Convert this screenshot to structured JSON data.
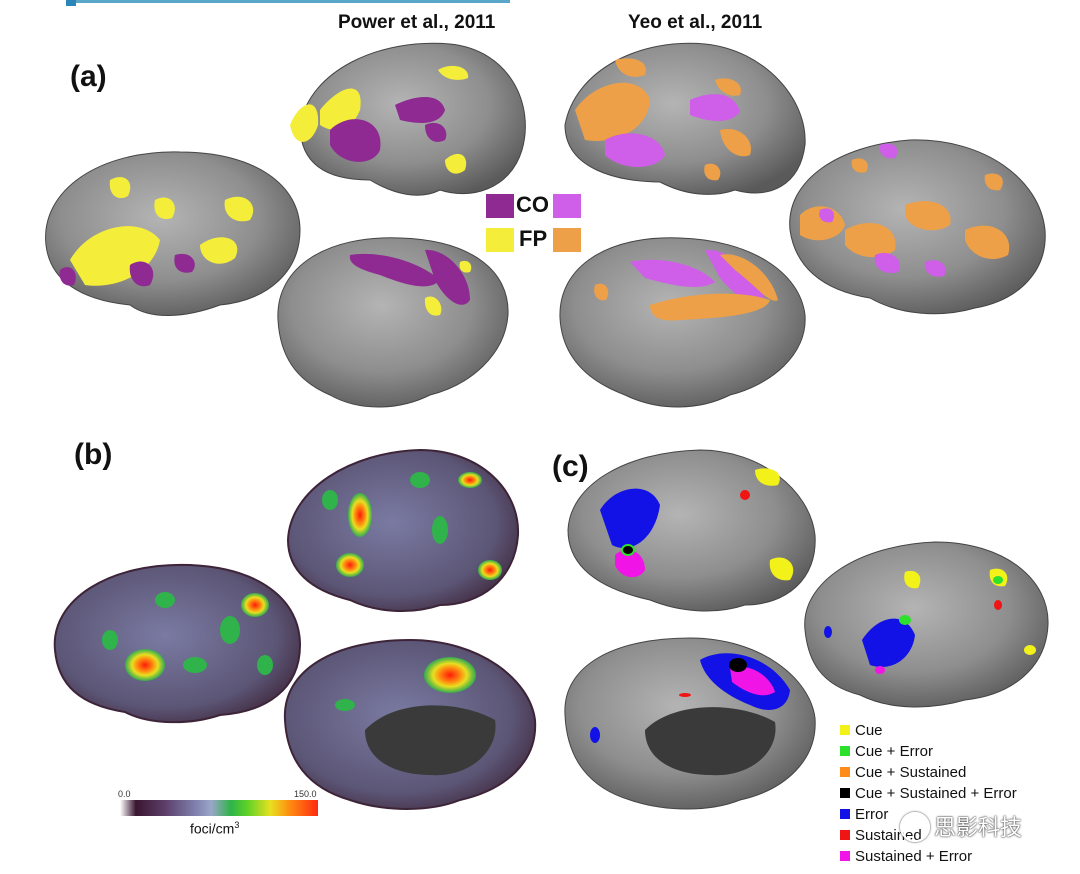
{
  "headings": {
    "power": "Power et al., 2011",
    "yeo": "Yeo et al., 2011"
  },
  "panels": {
    "a": "(a)",
    "b": "(b)",
    "c": "(c)"
  },
  "key": {
    "co": "CO",
    "fp": "FP",
    "colors": {
      "power_co": "#8e2a91",
      "yeo_co": "#cf5ee8",
      "power_fp": "#f4ee3a",
      "yeo_fp": "#eda048"
    }
  },
  "colorbar": {
    "min": "0.0",
    "max": "150.0",
    "label": "foci/cm",
    "label_sup": "3"
  },
  "legend_c": [
    {
      "label": "Cue",
      "color": "#f2f21a"
    },
    {
      "label": "Cue + Error",
      "color": "#2ee02e"
    },
    {
      "label": "Cue + Sustained",
      "color": "#ff8c1a"
    },
    {
      "label": "Cue + Sustained + Error",
      "color": "#000000"
    },
    {
      "label": "Error",
      "color": "#1212e6"
    },
    {
      "label": "Sustained",
      "color": "#f01414"
    },
    {
      "label": "Sustained + Error",
      "color": "#f014e6"
    }
  ],
  "watermark": "思影科技"
}
